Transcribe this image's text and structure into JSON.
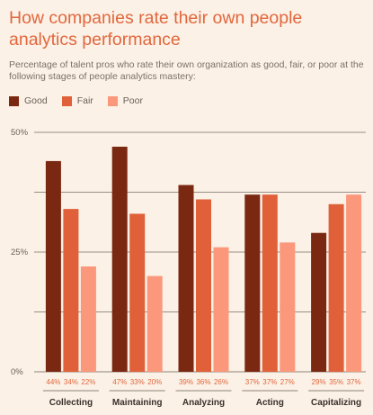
{
  "title": "How companies rate their own people analytics performance",
  "subtitle": "Percentage of talent pros who rate their own organization as good, fair, or poor at the following stages of people analytics mastery:",
  "colors": {
    "background": "#fbf1e6",
    "good": "#7a2811",
    "fair": "#e0603a",
    "poor": "#fb987c",
    "accent": "#e2673d",
    "grid": "#6b5f57"
  },
  "chart_data": {
    "type": "bar",
    "categories": [
      "Collecting",
      "Maintaining",
      "Analyzing",
      "Acting",
      "Capitalizing"
    ],
    "series": [
      {
        "name": "Good",
        "values": [
          44,
          47,
          39,
          37,
          29
        ]
      },
      {
        "name": "Fair",
        "values": [
          34,
          33,
          36,
          37,
          35
        ]
      },
      {
        "name": "Poor",
        "values": [
          22,
          20,
          26,
          27,
          37
        ]
      }
    ],
    "value_labels": [
      [
        "44%",
        "34%",
        "22%"
      ],
      [
        "47%",
        "33%",
        "20%"
      ],
      [
        "39%",
        "36%",
        "26%"
      ],
      [
        "37%",
        "37%",
        "27%"
      ],
      [
        "29%",
        "35%",
        "37%"
      ]
    ],
    "y_ticks": [
      {
        "value": 50,
        "label": "50%"
      },
      {
        "value": 25,
        "label": "25%"
      },
      {
        "value": 0,
        "label": "0%"
      }
    ],
    "ylim": [
      0,
      50
    ],
    "legend_position": "top-left",
    "grid": true
  }
}
